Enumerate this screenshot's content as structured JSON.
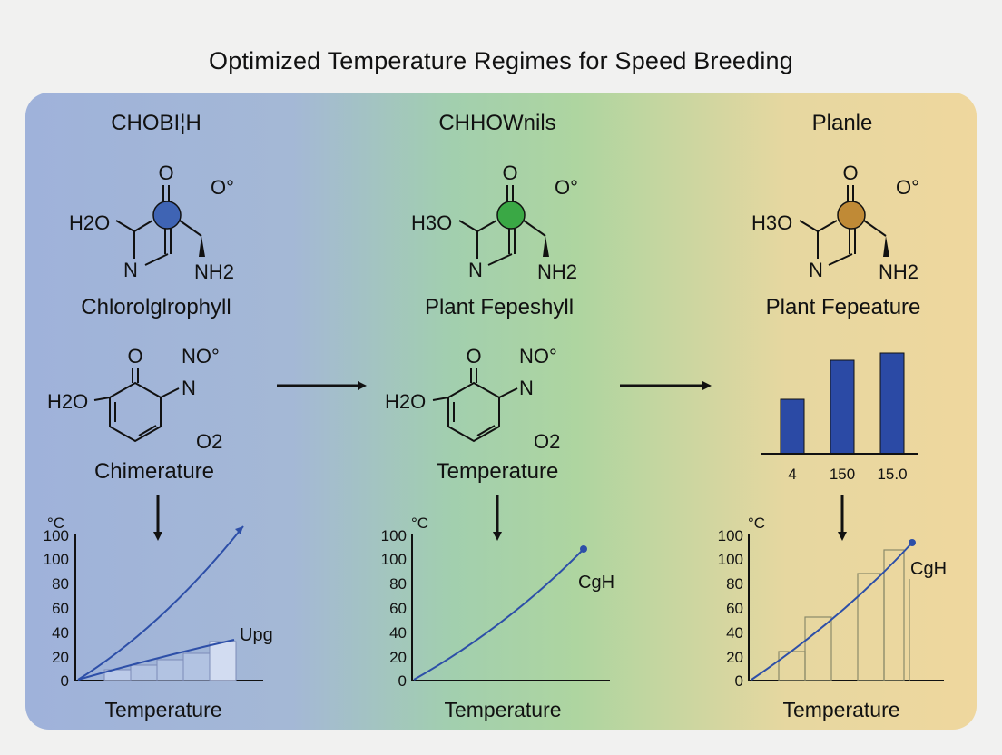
{
  "title": "Optimized Temperature Regimes for Speed Breeding",
  "columns": [
    {
      "heading": "CHOBI¦H",
      "molecule1": {
        "top": "O",
        "corner": "O°",
        "left": "H2O",
        "n": "N",
        "amine": "NH2",
        "color": "#3f64b4",
        "name": "Chlorolglrophyll"
      },
      "molecule2": {
        "top": "O",
        "no": "NO°",
        "n": "N",
        "left": "H2O",
        "o2": "O2",
        "name": "Chimerature"
      },
      "chart": {
        "unit": "°C",
        "xlabel": "Temperature",
        "yticks": [
          "100",
          "100",
          "80",
          "60",
          "40",
          "20",
          "0"
        ],
        "annotation": "Upg"
      }
    },
    {
      "heading": "CHHOWnils",
      "molecule1": {
        "top": "O",
        "corner": "O°",
        "left": "H3O",
        "n": "N",
        "amine": "NH2",
        "color": "#3aa845",
        "name": "Plant Fepeshyll"
      },
      "molecule2": {
        "top": "O",
        "no": "NO°",
        "n": "N",
        "left": "H2O",
        "o2": "O2",
        "name": "Temperature"
      },
      "chart": {
        "unit": "°C",
        "xlabel": "Temperature",
        "yticks": [
          "100",
          "100",
          "80",
          "60",
          "40",
          "20",
          "0"
        ],
        "annotation": "CgH"
      }
    },
    {
      "heading": "Planle",
      "molecule1": {
        "top": "O",
        "corner": "O°",
        "left": "H3O",
        "n": "N",
        "amine": "NH2",
        "color": "#c08a36",
        "name": "Plant Fepeature"
      },
      "bars": {
        "labels": [
          "4",
          "150",
          "15.0"
        ],
        "color": "#2b4aa5"
      },
      "chart": {
        "unit": "°C",
        "xlabel": "Temperature",
        "yticks": [
          "100",
          "100",
          "80",
          "60",
          "40",
          "20",
          "0"
        ],
        "annotation": "CgH"
      }
    }
  ]
}
